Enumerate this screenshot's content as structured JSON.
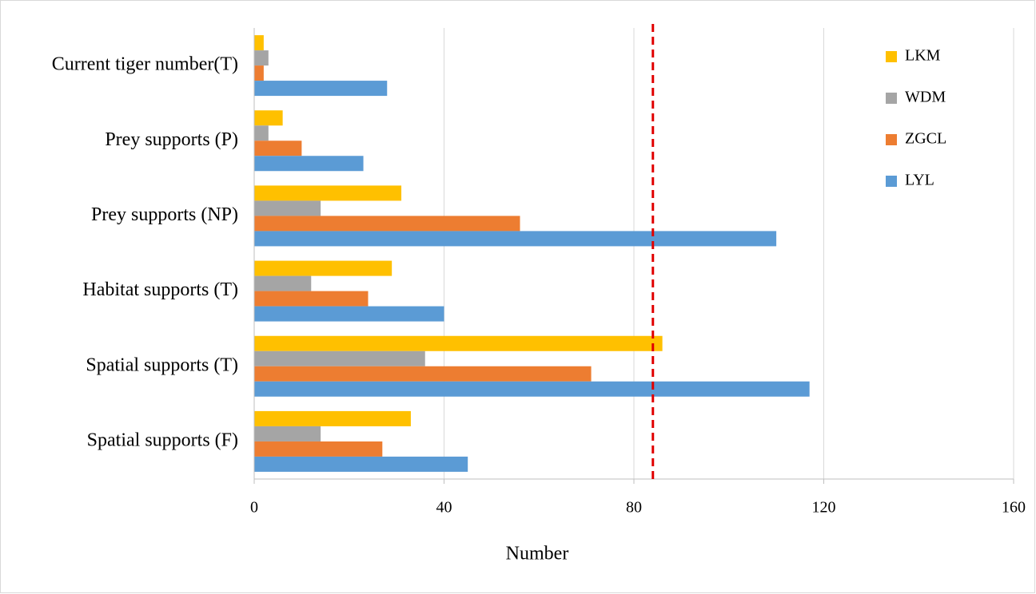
{
  "chart_data": {
    "type": "hbar",
    "categories": [
      "Current tiger number(T)",
      "Prey supports (P)",
      "Prey supports (NP)",
      "Habitat supports (T)",
      "Spatial supports (T)",
      "Spatial supports (F)"
    ],
    "series": [
      {
        "name": "LKM",
        "color": "#ffc000",
        "values": [
          2,
          6,
          31,
          29,
          86,
          33
        ]
      },
      {
        "name": "WDM",
        "color": "#a5a5a5",
        "values": [
          3,
          3,
          14,
          12,
          36,
          14
        ]
      },
      {
        "name": "ZGCL",
        "color": "#ed7d31",
        "values": [
          2,
          10,
          56,
          24,
          71,
          27
        ]
      },
      {
        "name": "LYL",
        "color": "#5b9bd5",
        "values": [
          28,
          23,
          110,
          40,
          117,
          45
        ]
      }
    ],
    "xlabel": "Number",
    "xlim": [
      0,
      160
    ],
    "xticks": [
      0,
      40,
      80,
      120,
      160
    ],
    "grid": true,
    "reference_line": {
      "value": 84,
      "color": "#e00000",
      "dashed": true
    },
    "legend": "top-right"
  }
}
